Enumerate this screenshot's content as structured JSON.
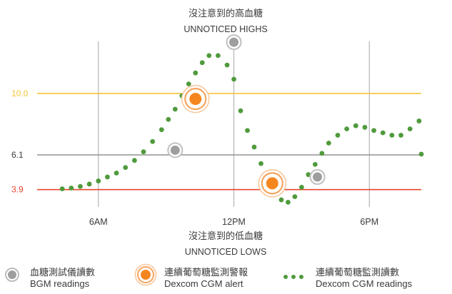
{
  "chart_data": {
    "type": "line",
    "title": "沒注意到的高血糖",
    "subtitle": "UNNOTICED HIGHS",
    "bottom_annotation_zh": "沒注意到的低血糖",
    "bottom_annotation_en": "UNNOTICED LOWS",
    "x_ticks": [
      "6AM",
      "12PM",
      "6PM"
    ],
    "x_tick_values": [
      6,
      12,
      18
    ],
    "xlim": [
      4.3,
      20.3
    ],
    "ylim": [
      2.8,
      13.3
    ],
    "thresholds": [
      {
        "label": "10.0",
        "value": 10.0,
        "color": "#f6c337"
      },
      {
        "label": "6.1",
        "value": 6.1,
        "color": "#9a9a9a"
      },
      {
        "label": "3.9",
        "value": 3.9,
        "color": "#e8452c"
      }
    ],
    "series": [
      {
        "name": "Dexcom CGM readings",
        "style": "dots",
        "color": "#4f9a3c",
        "x": [
          4.4,
          4.8,
          5.2,
          5.6,
          6.0,
          6.4,
          6.8,
          7.2,
          7.6,
          8.0,
          8.4,
          8.8,
          9.1,
          9.4,
          9.7,
          10.0,
          10.3,
          10.6,
          10.9,
          11.3,
          11.7,
          12.0,
          12.3,
          12.6,
          12.9,
          13.2,
          13.5,
          13.8,
          14.1,
          14.4,
          14.7,
          15.0,
          15.3,
          15.6,
          15.9,
          16.2,
          16.6,
          17.0,
          17.4,
          17.8,
          18.2,
          18.6,
          19.0,
          19.4,
          19.8,
          20.2
        ],
        "y": [
          3.95,
          4.0,
          4.1,
          4.25,
          4.45,
          4.7,
          4.95,
          5.3,
          5.75,
          6.3,
          6.95,
          7.7,
          8.35,
          9.0,
          9.85,
          10.6,
          11.3,
          11.95,
          12.4,
          12.4,
          11.8,
          10.9,
          8.9,
          7.65,
          6.6,
          5.55,
          4.6,
          3.95,
          3.25,
          3.1,
          3.45,
          4.05,
          4.85,
          5.5,
          6.2,
          6.85,
          7.35,
          7.75,
          7.95,
          7.85,
          7.65,
          7.5,
          7.35,
          7.35,
          7.75,
          8.25
        ],
        "last_point": {
          "x": 20.3,
          "y": 6.15
        }
      },
      {
        "name": "BGM readings",
        "style": "gray-circle",
        "color": "#9e9e9e",
        "points": [
          {
            "x": 9.4,
            "y": 6.4
          },
          {
            "x": 12.0,
            "y": 13.25
          },
          {
            "x": 15.7,
            "y": 4.7
          }
        ]
      },
      {
        "name": "Dexcom CGM alert",
        "style": "orange-ring",
        "color": "#f5861f",
        "points": [
          {
            "x": 10.3,
            "y": 9.65
          },
          {
            "x": 13.7,
            "y": 4.3
          }
        ]
      }
    ]
  },
  "legend": [
    {
      "zh": "血糖測試儀讀數",
      "en": "BGM readings",
      "icon": "bgm-circle-icon"
    },
    {
      "zh": "連續葡萄糖監測警報",
      "en": "Dexcom CGM alert",
      "icon": "cgm-alert-ring-icon"
    },
    {
      "zh": "連續葡萄糖監測讀數",
      "en": "Dexcom CGM readings",
      "icon": "cgm-dots-icon"
    }
  ]
}
